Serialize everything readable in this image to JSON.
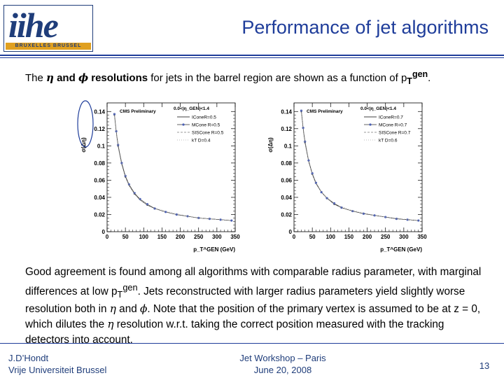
{
  "logo": {
    "word": "iihe",
    "subtitle": "BRUXELLES BRUSSEL"
  },
  "title": "Performance of jet algorithms",
  "intro": {
    "p1": "The ",
    "eta": "η",
    "and": " and ",
    "phi": "ϕ",
    "p2": " resolutions",
    "p3": " for jets in the barrel region are shown as a function of p",
    "sub": "T",
    "sup": "gen",
    "p4": "."
  },
  "body": {
    "s1": "Good agreement is found among all algorithms with comparable radius parameter, with marginal differences at low p",
    "sub": "T",
    "sup": "gen",
    "s2": ". Jets reconstructed with larger radius parameters yield slightly worse resolution both in ",
    "eta1": "η",
    "s3": " and ",
    "phi": "ϕ",
    "s4": ". Note that the position of the primary vertex is assumed to be at z = 0, which dilutes the ",
    "eta2": "η",
    "s5": " resolution w.r.t. taking the correct position measured with the tracking detectors into account."
  },
  "footer": {
    "author": "J.D’Hondt",
    "institute": "Vrije Universiteit Brussel",
    "event": "Jet Workshop – Paris",
    "date": "June 20, 2008",
    "page": "13"
  },
  "colors": {
    "title": "#1f3d9a",
    "rule": "#1f3d9a",
    "marker": "#4a5fb5",
    "logo": "#1f3d7a"
  },
  "chart_data": [
    {
      "type": "line",
      "ylabel": "σ(Δη)",
      "xlabel": "p_T^GEN (GeV)",
      "annotation": "CMS Preliminary",
      "region": "0.0<|η_GEN|<1.4",
      "xlim": [
        0,
        350
      ],
      "ylim": [
        0,
        0.15
      ],
      "x_ticks": [
        "0",
        "50",
        "100",
        "150",
        "200",
        "250",
        "300",
        "350"
      ],
      "y_ticks": [
        "0",
        "0.02",
        "0.04",
        "0.06",
        "0.08",
        "0.1",
        "0.12",
        "0.14"
      ],
      "legend_position": "top-right",
      "x": [
        20,
        25,
        30,
        40,
        50,
        60,
        75,
        90,
        110,
        130,
        160,
        190,
        220,
        250,
        280,
        310,
        340
      ],
      "series": [
        {
          "name": "IConeR=0.5",
          "values": [
            0.136,
            0.116,
            0.1,
            0.079,
            0.064,
            0.054,
            0.044,
            0.037,
            0.031,
            0.027,
            0.023,
            0.02,
            0.018,
            0.016,
            0.015,
            0.014,
            0.013
          ]
        },
        {
          "name": "MCone R=0.5",
          "values": [
            0.137,
            0.117,
            0.101,
            0.08,
            0.065,
            0.055,
            0.045,
            0.038,
            0.032,
            0.027,
            0.023,
            0.02,
            0.018,
            0.016,
            0.015,
            0.014,
            0.013
          ]
        },
        {
          "name": "SISCone R=0.5",
          "values": [
            0.135,
            0.115,
            0.099,
            0.078,
            0.064,
            0.054,
            0.044,
            0.037,
            0.031,
            0.027,
            0.023,
            0.02,
            0.018,
            0.016,
            0.015,
            0.014,
            0.013
          ]
        },
        {
          "name": "kT D=0.4",
          "values": [
            0.138,
            0.118,
            0.102,
            0.081,
            0.066,
            0.055,
            0.045,
            0.038,
            0.032,
            0.028,
            0.024,
            0.021,
            0.018,
            0.016,
            0.015,
            0.014,
            0.013
          ]
        }
      ]
    },
    {
      "type": "line",
      "ylabel": "σ(Δη)",
      "xlabel": "p_T^GEN (GeV)",
      "annotation": "CMS Preliminary",
      "region": "0.0<|η_GEN|<1.4",
      "xlim": [
        0,
        350
      ],
      "ylim": [
        0,
        0.15
      ],
      "x_ticks": [
        "0",
        "50",
        "100",
        "150",
        "200",
        "250",
        "300",
        "350"
      ],
      "y_ticks": [
        "0",
        "0.02",
        "0.04",
        "0.06",
        "0.08",
        "0.1",
        "0.12",
        "0.14"
      ],
      "legend_position": "top-right",
      "x": [
        20,
        25,
        30,
        40,
        50,
        60,
        75,
        90,
        110,
        130,
        160,
        190,
        220,
        250,
        280,
        310,
        340
      ],
      "series": [
        {
          "name": "IConeR=0.7",
          "values": [
            0.14,
            0.12,
            0.104,
            0.082,
            0.067,
            0.056,
            0.046,
            0.039,
            0.032,
            0.028,
            0.024,
            0.021,
            0.019,
            0.017,
            0.015,
            0.014,
            0.013
          ]
        },
        {
          "name": "MCone R=0.7",
          "values": [
            0.141,
            0.121,
            0.105,
            0.083,
            0.068,
            0.057,
            0.046,
            0.039,
            0.033,
            0.028,
            0.024,
            0.021,
            0.019,
            0.017,
            0.015,
            0.014,
            0.013
          ]
        },
        {
          "name": "SISCone R=0.7",
          "values": [
            0.139,
            0.119,
            0.103,
            0.082,
            0.067,
            0.056,
            0.046,
            0.039,
            0.032,
            0.028,
            0.024,
            0.021,
            0.019,
            0.017,
            0.015,
            0.014,
            0.013
          ]
        },
        {
          "name": "kT D=0.6",
          "values": [
            0.142,
            0.122,
            0.106,
            0.084,
            0.068,
            0.057,
            0.047,
            0.04,
            0.033,
            0.029,
            0.025,
            0.022,
            0.019,
            0.017,
            0.016,
            0.014,
            0.013
          ]
        }
      ]
    }
  ]
}
